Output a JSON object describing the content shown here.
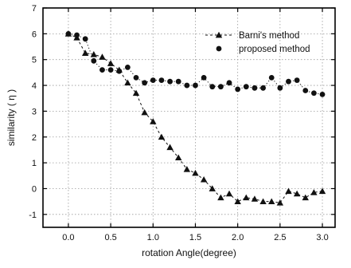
{
  "chart_data": {
    "type": "scatter",
    "xlabel": "rotation Angle(degree)",
    "ylabel": "similarity ( η )",
    "xlim": [
      -0.3,
      3.15
    ],
    "ylim": [
      -1.5,
      7
    ],
    "xticks": [
      "0.0",
      "0.5",
      "1.0",
      "1.5",
      "2.0",
      "2.5",
      "3.0"
    ],
    "xtick_values": [
      0.0,
      0.5,
      1.0,
      1.5,
      2.0,
      2.5,
      3.0
    ],
    "yticks": [
      "-1",
      "0",
      "1",
      "2",
      "3",
      "4",
      "5",
      "6",
      "7"
    ],
    "ytick_values": [
      -1,
      0,
      1,
      2,
      3,
      4,
      5,
      6,
      7
    ],
    "grid": true,
    "legend_position": "top-right",
    "series": [
      {
        "name": "Barni's method",
        "marker": "triangle",
        "line": "dashed",
        "color": "#111111",
        "x": [
          0.0,
          0.1,
          0.2,
          0.3,
          0.4,
          0.5,
          0.6,
          0.7,
          0.8,
          0.9,
          1.0,
          1.1,
          1.2,
          1.3,
          1.4,
          1.5,
          1.6,
          1.7,
          1.8,
          1.9,
          2.0,
          2.1,
          2.2,
          2.3,
          2.4,
          2.5,
          2.6,
          2.7,
          2.8,
          2.9,
          3.0
        ],
        "y": [
          6.0,
          5.85,
          5.25,
          5.2,
          5.1,
          4.85,
          4.6,
          4.1,
          3.7,
          2.95,
          2.6,
          2.0,
          1.6,
          1.2,
          0.75,
          0.6,
          0.35,
          0.0,
          -0.35,
          -0.2,
          -0.5,
          -0.35,
          -0.4,
          -0.5,
          -0.5,
          -0.55,
          -0.1,
          -0.2,
          -0.35,
          -0.15,
          -0.1
        ]
      },
      {
        "name": "proposed method",
        "marker": "circle",
        "line": "dotted",
        "color": "#111111",
        "x": [
          0.0,
          0.1,
          0.2,
          0.3,
          0.4,
          0.5,
          0.6,
          0.7,
          0.8,
          0.9,
          1.0,
          1.1,
          1.2,
          1.3,
          1.4,
          1.5,
          1.6,
          1.7,
          1.8,
          1.9,
          2.0,
          2.1,
          2.2,
          2.3,
          2.4,
          2.5,
          2.6,
          2.7,
          2.8,
          2.9,
          3.0
        ],
        "y": [
          6.0,
          5.95,
          5.8,
          4.95,
          4.6,
          4.6,
          4.55,
          4.7,
          4.3,
          4.1,
          4.2,
          4.2,
          4.15,
          4.15,
          4.0,
          4.0,
          4.3,
          3.95,
          3.95,
          4.1,
          3.85,
          3.95,
          3.9,
          3.9,
          4.3,
          3.9,
          4.15,
          4.2,
          3.8,
          3.7,
          3.65
        ]
      }
    ]
  }
}
